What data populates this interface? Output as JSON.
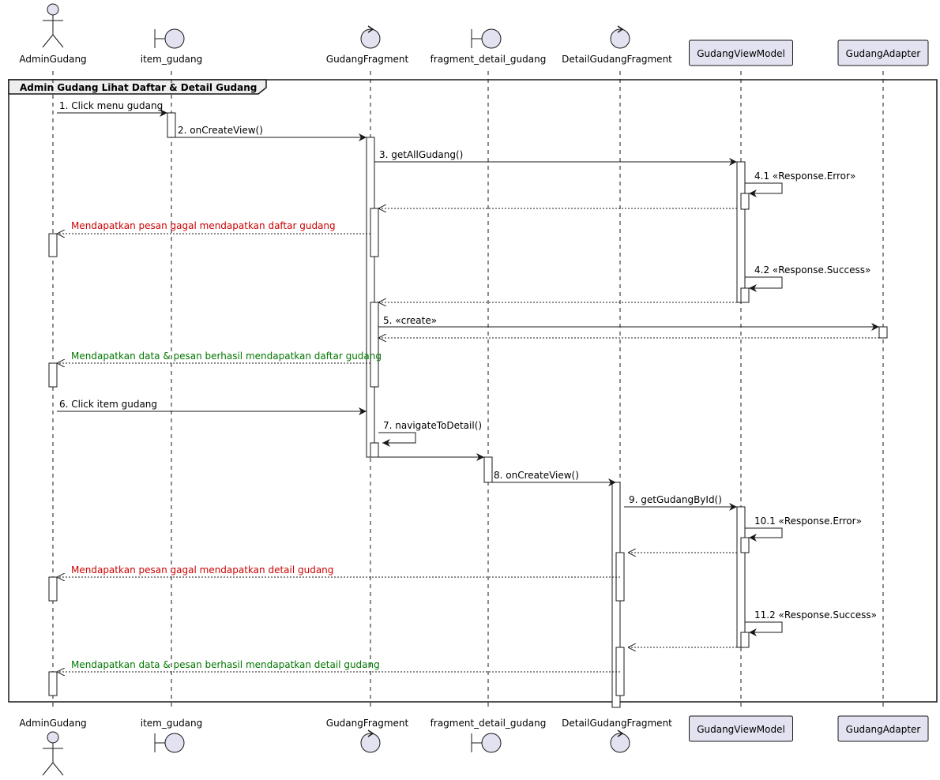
{
  "participants": [
    {
      "id": "admin",
      "label": "AdminGudang",
      "kind": "actor"
    },
    {
      "id": "item",
      "label": "item_gudang",
      "kind": "boundary"
    },
    {
      "id": "gfrag",
      "label": "GudangFragment",
      "kind": "control"
    },
    {
      "id": "fdetail",
      "label": "fragment_detail_gudang",
      "kind": "boundary"
    },
    {
      "id": "dfrag",
      "label": "DetailGudangFragment",
      "kind": "control"
    },
    {
      "id": "vm",
      "label": "GudangViewModel",
      "kind": "box"
    },
    {
      "id": "adapter",
      "label": "GudangAdapter",
      "kind": "box"
    }
  ],
  "frame": {
    "title": "Admin Gudang Lihat Daftar & Detail Gudang"
  },
  "messages": [
    {
      "from": "admin",
      "to": "item",
      "label": "1. Click menu gudang",
      "type": "sync"
    },
    {
      "from": "item",
      "to": "gfrag",
      "label": "2. onCreateView()",
      "type": "sync"
    },
    {
      "from": "gfrag",
      "to": "vm",
      "label": "3. getAllGudang()",
      "type": "sync"
    },
    {
      "from": "vm",
      "to": "vm",
      "label": "4.1 «Response.Error»",
      "type": "self"
    },
    {
      "from": "vm",
      "to": "gfrag",
      "label": "",
      "type": "return"
    },
    {
      "from": "gfrag",
      "to": "admin",
      "label": "Mendapatkan pesan gagal mendapatkan daftar gudang",
      "type": "return",
      "color": "#cc0000"
    },
    {
      "from": "vm",
      "to": "vm",
      "label": "4.2 «Response.Success»",
      "type": "self"
    },
    {
      "from": "vm",
      "to": "gfrag",
      "label": "",
      "type": "return"
    },
    {
      "from": "gfrag",
      "to": "adapter",
      "label": "5. «create»",
      "type": "sync"
    },
    {
      "from": "adapter",
      "to": "gfrag",
      "label": "",
      "type": "return"
    },
    {
      "from": "gfrag",
      "to": "admin",
      "label": "Mendapatkan data & pesan berhasil mendapatkan daftar gudang",
      "type": "return",
      "color": "#007700"
    },
    {
      "from": "admin",
      "to": "gfrag",
      "label": "6. Click item gudang",
      "type": "sync"
    },
    {
      "from": "gfrag",
      "to": "gfrag",
      "label": "7. navigateToDetail()",
      "type": "self"
    },
    {
      "from": "gfrag",
      "to": "fdetail",
      "label": "",
      "type": "sync"
    },
    {
      "from": "fdetail",
      "to": "dfrag",
      "label": "8. onCreateView()",
      "type": "sync"
    },
    {
      "from": "dfrag",
      "to": "vm",
      "label": "9. getGudangById()",
      "type": "sync"
    },
    {
      "from": "vm",
      "to": "vm",
      "label": "10.1 «Response.Error»",
      "type": "self"
    },
    {
      "from": "vm",
      "to": "dfrag",
      "label": "",
      "type": "return"
    },
    {
      "from": "dfrag",
      "to": "admin",
      "label": "Mendapatkan pesan gagal mendapatkan detail gudang",
      "type": "return",
      "color": "#cc0000"
    },
    {
      "from": "vm",
      "to": "vm",
      "label": "11.2 «Response.Success»",
      "type": "self"
    },
    {
      "from": "vm",
      "to": "dfrag",
      "label": "",
      "type": "return"
    },
    {
      "from": "dfrag",
      "to": "admin",
      "label": "Mendapatkan data & pesan berhasil mendapatkan detail gudang",
      "type": "return",
      "color": "#007700"
    }
  ],
  "colors": {
    "participant_fill": "#e2e2f0",
    "line": "#181818",
    "error": "#cc0000",
    "success": "#007700"
  }
}
